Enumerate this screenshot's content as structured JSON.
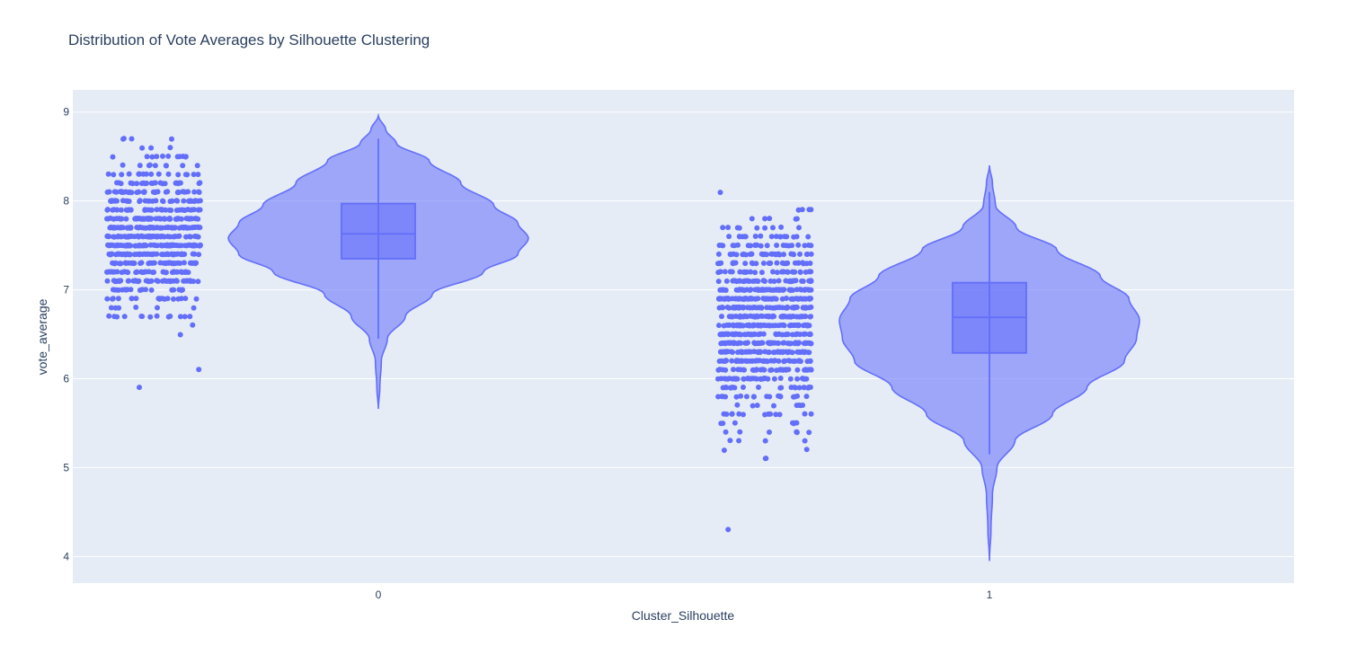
{
  "chart_data": {
    "type": "violin",
    "title": "Distribution of Vote Averages by Silhouette Clustering",
    "xlabel": "Cluster_Silhouette",
    "ylabel": "vote_average",
    "categories": [
      "0",
      "1"
    ],
    "y_ticks": [
      "4",
      "5",
      "6",
      "7",
      "8",
      "9"
    ],
    "ylim": [
      3.7,
      9.25
    ],
    "grid": true,
    "colors": {
      "fill": "#636efa",
      "plot_bg": "#e5ecf6",
      "text": "#2a3f5f"
    },
    "series": [
      {
        "category": "0",
        "box": {
          "q1": 7.35,
          "median": 7.63,
          "q3": 7.97,
          "whisker_low": 6.45,
          "whisker_high": 8.7
        },
        "kde_range": [
          5.66,
          8.96
        ],
        "kde_width_profile": [
          [
            5.66,
            0.0
          ],
          [
            5.9,
            0.01
          ],
          [
            6.2,
            0.02
          ],
          [
            6.45,
            0.06
          ],
          [
            6.7,
            0.18
          ],
          [
            6.95,
            0.36
          ],
          [
            7.2,
            0.7
          ],
          [
            7.4,
            0.93
          ],
          [
            7.58,
            1.0
          ],
          [
            7.75,
            0.93
          ],
          [
            7.95,
            0.77
          ],
          [
            8.2,
            0.55
          ],
          [
            8.45,
            0.34
          ],
          [
            8.65,
            0.12
          ],
          [
            8.8,
            0.05
          ],
          [
            8.96,
            0.0
          ]
        ],
        "points": {
          "count": 700,
          "center": 7.6,
          "spread": 0.42,
          "min": 5.92,
          "max": 8.71
        }
      },
      {
        "category": "1",
        "box": {
          "q1": 6.29,
          "median": 6.69,
          "q3": 7.08,
          "whisker_low": 5.15,
          "whisker_high": 8.1
        },
        "kde_range": [
          3.95,
          8.4
        ],
        "kde_width_profile": [
          [
            3.95,
            0.0
          ],
          [
            4.3,
            0.01
          ],
          [
            4.7,
            0.02
          ],
          [
            5.0,
            0.05
          ],
          [
            5.3,
            0.17
          ],
          [
            5.6,
            0.42
          ],
          [
            5.9,
            0.65
          ],
          [
            6.2,
            0.9
          ],
          [
            6.45,
            0.98
          ],
          [
            6.66,
            1.0
          ],
          [
            6.9,
            0.93
          ],
          [
            7.15,
            0.74
          ],
          [
            7.45,
            0.45
          ],
          [
            7.7,
            0.18
          ],
          [
            7.95,
            0.04
          ],
          [
            8.2,
            0.02
          ],
          [
            8.4,
            0.0
          ]
        ],
        "points": {
          "count": 900,
          "center": 6.62,
          "spread": 0.55,
          "min": 4.25,
          "max": 8.12
        }
      }
    ]
  }
}
